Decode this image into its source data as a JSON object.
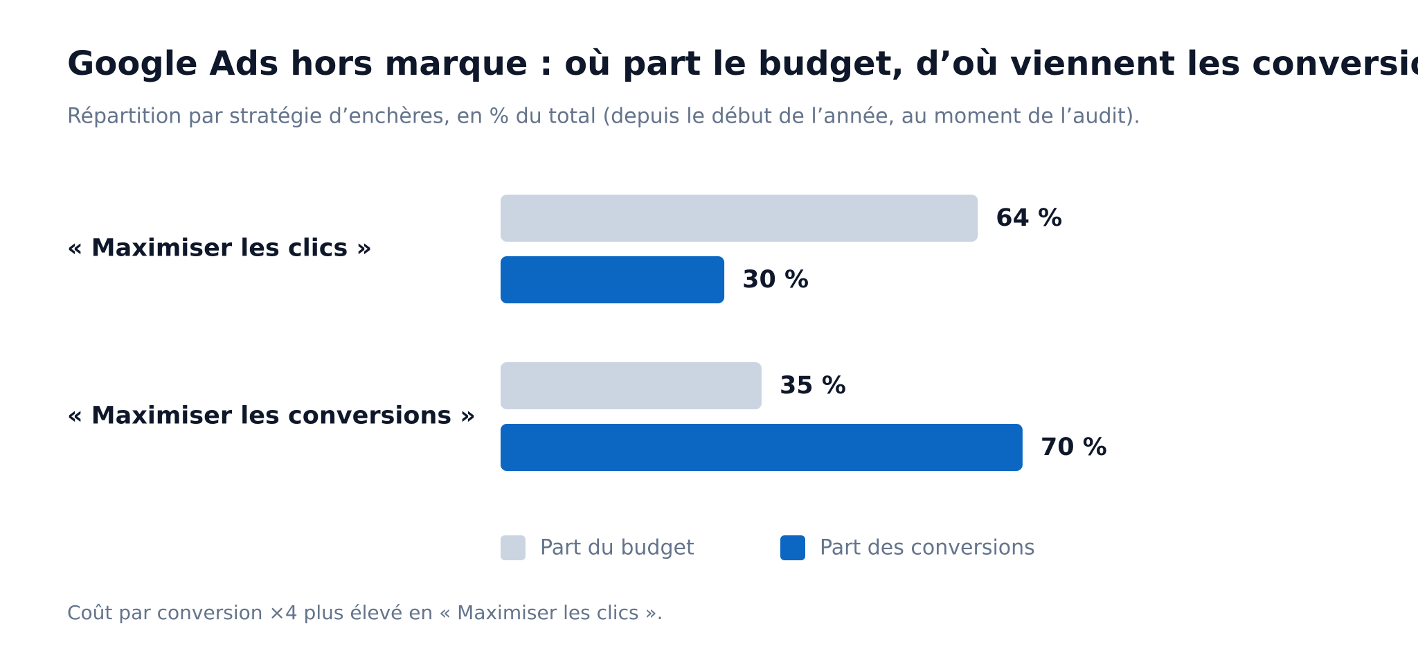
{
  "chart_data": {
    "type": "bar",
    "orientation": "horizontal",
    "title": "Google Ads hors marque : où part le budget, d’où viennent les conversions",
    "subtitle": "Répartition par stratégie d’enchères, en % du total (depuis le début de l’année, au moment de l’audit).",
    "categories": [
      "« Maximiser les clics »",
      "« Maximiser les conversions »"
    ],
    "series": [
      {
        "name": "Part du budget",
        "color": "#cbd5e1",
        "values": [
          64,
          35
        ],
        "value_labels": [
          "64 %",
          "35 %"
        ]
      },
      {
        "name": "Part des conversions",
        "color": "#0b67c2",
        "values": [
          30,
          70
        ],
        "value_labels": [
          "30 %",
          "70 %"
        ]
      }
    ],
    "xlim": [
      0,
      100
    ],
    "note": "Coût par conversion ×4 plus élevé en « Maximiser les clics »."
  }
}
